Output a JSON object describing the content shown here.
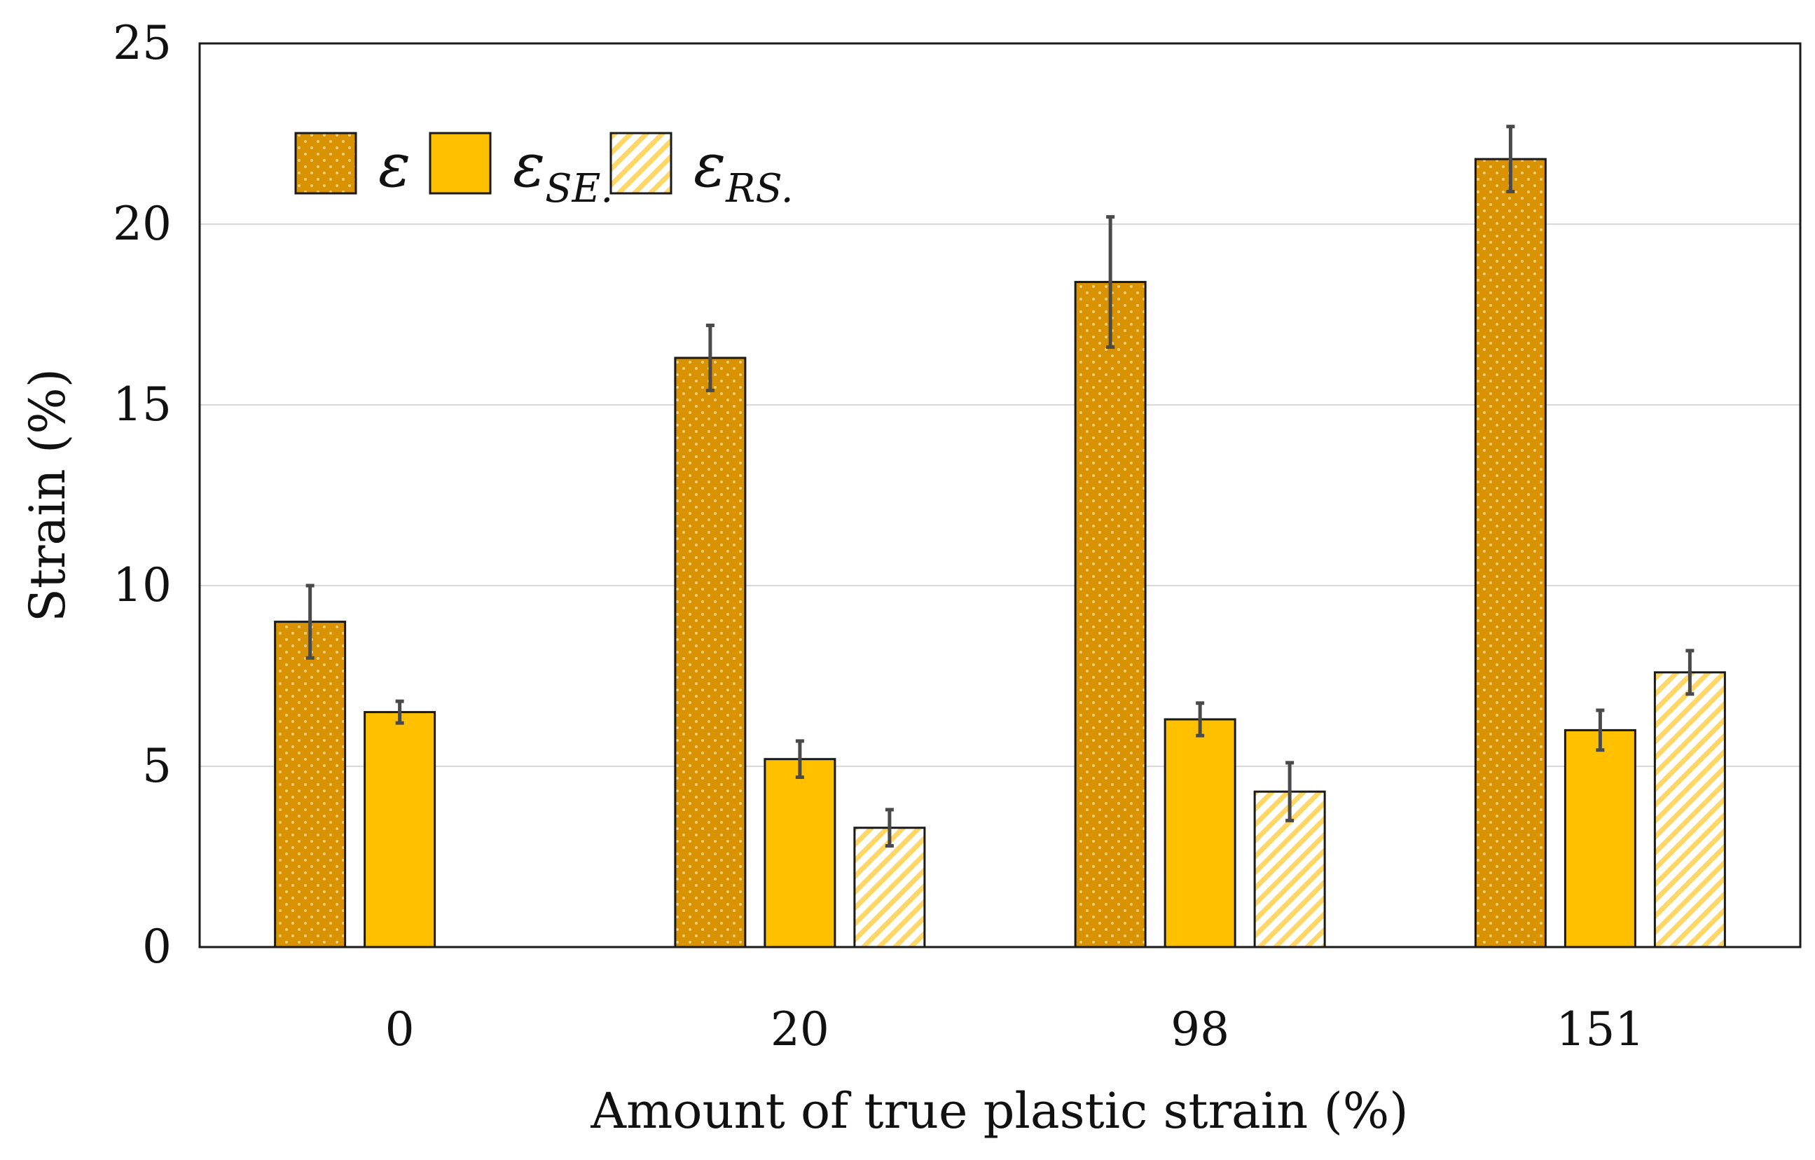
{
  "chart_data": {
    "type": "bar",
    "title": "",
    "xlabel": "Amount of true plastic strain (%)",
    "ylabel": "Strain (%)",
    "ylim": [
      0,
      25
    ],
    "yticks": [
      "0",
      "5",
      "10",
      "15",
      "20",
      "25"
    ],
    "ytick_values": [
      0,
      5,
      10,
      15,
      20,
      25
    ],
    "grid": true,
    "legend_position": "top-left",
    "categories": [
      "0",
      "20",
      "98",
      "151"
    ],
    "series": [
      {
        "name": "ε",
        "legend_main": "ε",
        "legend_sub": "",
        "pattern": "dotted",
        "color": "#D99200",
        "values": [
          9.0,
          16.3,
          18.4,
          21.8
        ],
        "errors": [
          1.0,
          0.9,
          1.8,
          0.9
        ]
      },
      {
        "name": "εSE.",
        "legend_main": "ε",
        "legend_sub": "SE.",
        "pattern": "solid",
        "color": "#FFC000",
        "values": [
          6.5,
          5.2,
          6.3,
          6.0
        ],
        "errors": [
          0.3,
          0.5,
          0.45,
          0.55
        ]
      },
      {
        "name": "εRS.",
        "legend_main": "ε",
        "legend_sub": "RS.",
        "pattern": "hatched",
        "color": "#FFC000",
        "values": [
          0.0,
          3.3,
          4.3,
          7.6
        ],
        "errors": [
          0.0,
          0.5,
          0.8,
          0.6
        ]
      }
    ]
  }
}
